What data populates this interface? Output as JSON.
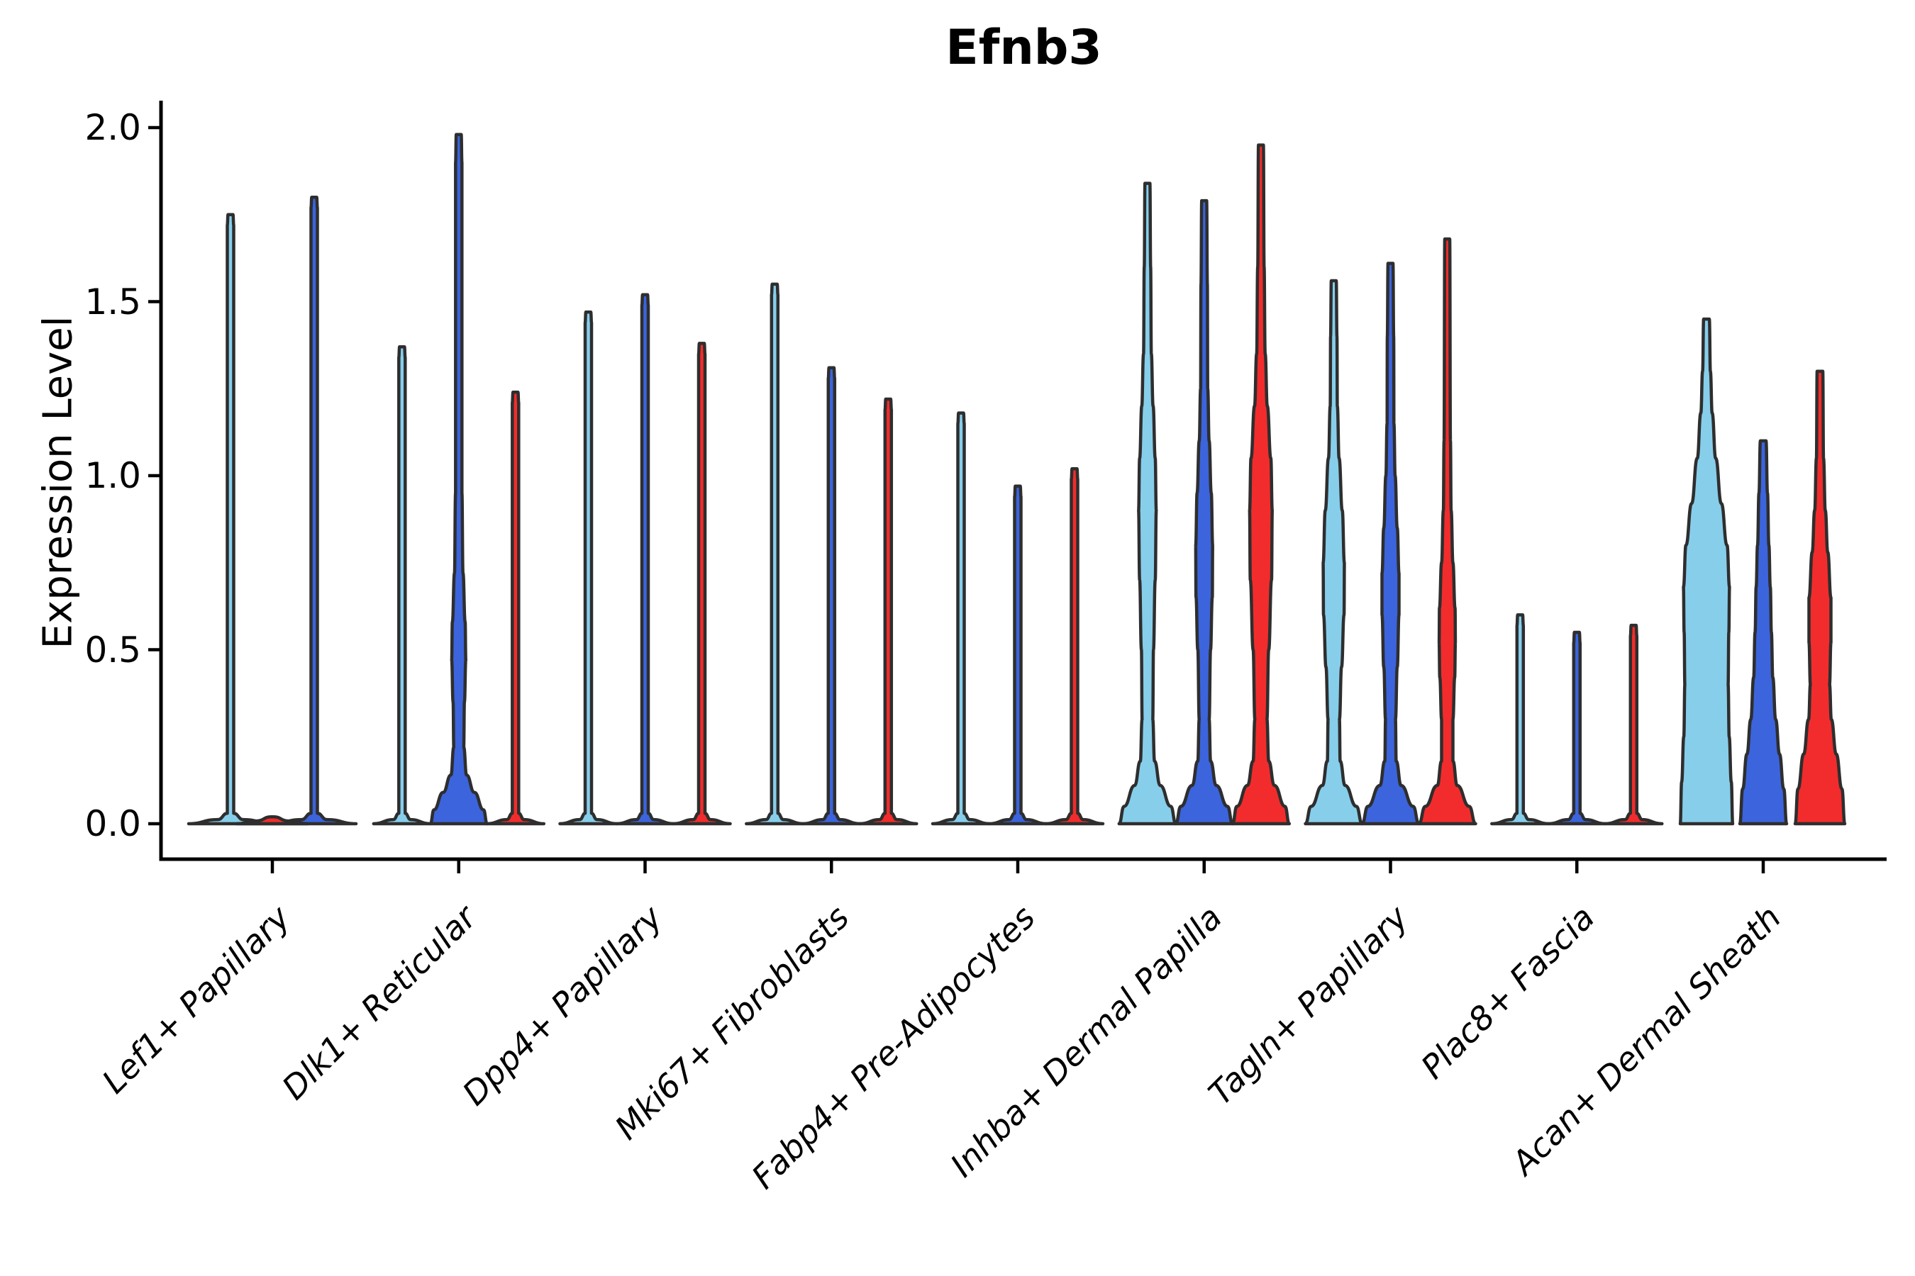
{
  "chart_data": {
    "type": "violin",
    "title": "Efnb3",
    "ylabel": "Expression Level",
    "xlabel": "",
    "ylim": [
      -0.04,
      2.08
    ],
    "yticks": [
      0.0,
      0.5,
      1.0,
      1.5,
      2.0
    ],
    "ytick_labels": [
      "0.0",
      "0.5",
      "1.0",
      "1.5",
      "2.0"
    ],
    "legend": "none",
    "grid": false,
    "palette": {
      "series1": "#87CEEB",
      "series2": "#3C64DC",
      "series3": "#F22C2C",
      "outline": "#2e2e2e"
    },
    "categories": [
      {
        "label": "Lef1+ Papillary",
        "violins": [
          {
            "color": "#87CEEB",
            "max": 1.75,
            "offset": -59,
            "base": 59,
            "shape": "spike"
          },
          {
            "color": "#3C64DC",
            "max": 1.8,
            "offset": 59,
            "base": 59,
            "shape": "spike"
          },
          {
            "color": "#F22C2C",
            "max": 0.0,
            "offset": 0,
            "base": 50,
            "shape": "flat"
          }
        ]
      },
      {
        "label": "Dlk1+ Reticular",
        "violins": [
          {
            "color": "#87CEEB",
            "max": 1.37,
            "offset": -80,
            "base": 40,
            "shape": "spike"
          },
          {
            "color": "#3C64DC",
            "max": 1.98,
            "offset": 0,
            "base": 40,
            "shape": "profile",
            "profile": [
              [
                0,
                40
              ],
              [
                0.04,
                35
              ],
              [
                0.09,
                22
              ],
              [
                0.14,
                11
              ],
              [
                0.22,
                7
              ],
              [
                0.35,
                8
              ],
              [
                0.47,
                10
              ],
              [
                0.58,
                9
              ],
              [
                0.72,
                6
              ],
              [
                0.95,
                4.5
              ],
              [
                1.9,
                4.5
              ],
              [
                1.98,
                3.5
              ]
            ]
          },
          {
            "color": "#F22C2C",
            "max": 1.24,
            "offset": 80,
            "base": 40,
            "shape": "spike"
          }
        ]
      },
      {
        "label": "Dpp4+ Papillary",
        "violins": [
          {
            "color": "#87CEEB",
            "max": 1.47,
            "offset": -80,
            "base": 40,
            "shape": "spike"
          },
          {
            "color": "#3C64DC",
            "max": 1.52,
            "offset": 0,
            "base": 40,
            "shape": "spike"
          },
          {
            "color": "#F22C2C",
            "max": 1.38,
            "offset": 80,
            "base": 40,
            "shape": "spike"
          }
        ]
      },
      {
        "label": "Mki67+ Fibroblasts",
        "violins": [
          {
            "color": "#87CEEB",
            "max": 1.55,
            "offset": -80,
            "base": 40,
            "shape": "spike"
          },
          {
            "color": "#3C64DC",
            "max": 1.31,
            "offset": 0,
            "base": 40,
            "shape": "spike"
          },
          {
            "color": "#F22C2C",
            "max": 1.22,
            "offset": 80,
            "base": 40,
            "shape": "spike"
          }
        ]
      },
      {
        "label": "Fabp4+ Pre-Adipocytes",
        "violins": [
          {
            "color": "#87CEEB",
            "max": 1.18,
            "offset": -80,
            "base": 40,
            "shape": "spike"
          },
          {
            "color": "#3C64DC",
            "max": 0.97,
            "offset": 0,
            "base": 40,
            "shape": "spike"
          },
          {
            "color": "#F22C2C",
            "max": 1.02,
            "offset": 80,
            "base": 40,
            "shape": "spike"
          }
        ]
      },
      {
        "label": "Inhba+ Dermal Papilla",
        "violins": [
          {
            "color": "#87CEEB",
            "max": 1.84,
            "offset": -80,
            "base": 40,
            "shape": "profile",
            "profile": [
              [
                0,
                40
              ],
              [
                0.05,
                33
              ],
              [
                0.11,
                18
              ],
              [
                0.18,
                10
              ],
              [
                0.3,
                7.5
              ],
              [
                0.5,
                8.5
              ],
              [
                0.7,
                11
              ],
              [
                0.9,
                12.5
              ],
              [
                1.05,
                11
              ],
              [
                1.2,
                8
              ],
              [
                1.35,
                5.5
              ],
              [
                1.6,
                4.5
              ],
              [
                1.84,
                3.5
              ]
            ]
          },
          {
            "color": "#3C64DC",
            "max": 1.79,
            "offset": 0,
            "base": 40,
            "shape": "profile",
            "profile": [
              [
                0,
                40
              ],
              [
                0.05,
                33
              ],
              [
                0.11,
                17
              ],
              [
                0.18,
                9
              ],
              [
                0.3,
                7
              ],
              [
                0.5,
                9
              ],
              [
                0.65,
                11.5
              ],
              [
                0.8,
                12
              ],
              [
                0.95,
                10
              ],
              [
                1.1,
                7
              ],
              [
                1.25,
                5
              ],
              [
                1.55,
                4.5
              ],
              [
                1.79,
                3.5
              ]
            ]
          },
          {
            "color": "#F22C2C",
            "max": 1.95,
            "offset": 80,
            "base": 40,
            "shape": "profile",
            "profile": [
              [
                0,
                40
              ],
              [
                0.05,
                34
              ],
              [
                0.11,
                19
              ],
              [
                0.18,
                11
              ],
              [
                0.3,
                8.5
              ],
              [
                0.5,
                11
              ],
              [
                0.7,
                15
              ],
              [
                0.9,
                16
              ],
              [
                1.05,
                14
              ],
              [
                1.2,
                9
              ],
              [
                1.35,
                6
              ],
              [
                1.6,
                4.5
              ],
              [
                1.95,
                3.5
              ]
            ]
          }
        ]
      },
      {
        "label": "Tagln+ Papillary",
        "violins": [
          {
            "color": "#87CEEB",
            "max": 1.56,
            "offset": -80,
            "base": 40,
            "shape": "profile",
            "profile": [
              [
                0,
                40
              ],
              [
                0.05,
                32
              ],
              [
                0.11,
                16
              ],
              [
                0.18,
                9
              ],
              [
                0.3,
                8
              ],
              [
                0.45,
                11
              ],
              [
                0.6,
                14.5
              ],
              [
                0.75,
                15
              ],
              [
                0.9,
                12
              ],
              [
                1.05,
                7.5
              ],
              [
                1.2,
                5
              ],
              [
                1.4,
                4.5
              ],
              [
                1.56,
                3.5
              ]
            ]
          },
          {
            "color": "#3C64DC",
            "max": 1.61,
            "offset": 0,
            "base": 40,
            "shape": "profile",
            "profile": [
              [
                0,
                40
              ],
              [
                0.05,
                32
              ],
              [
                0.11,
                15
              ],
              [
                0.18,
                8
              ],
              [
                0.3,
                7
              ],
              [
                0.45,
                9.5
              ],
              [
                0.6,
                12
              ],
              [
                0.72,
                12
              ],
              [
                0.85,
                9.5
              ],
              [
                1.0,
                6.5
              ],
              [
                1.15,
                4.8
              ],
              [
                1.4,
                4.5
              ],
              [
                1.61,
                3.5
              ]
            ]
          },
          {
            "color": "#F22C2C",
            "max": 1.68,
            "offset": 80,
            "base": 40,
            "shape": "profile",
            "profile": [
              [
                0,
                40
              ],
              [
                0.05,
                31
              ],
              [
                0.11,
                14
              ],
              [
                0.18,
                8
              ],
              [
                0.3,
                8
              ],
              [
                0.42,
                10.5
              ],
              [
                0.52,
                11.5
              ],
              [
                0.62,
                11
              ],
              [
                0.75,
                8
              ],
              [
                0.9,
                5.5
              ],
              [
                1.1,
                4.5
              ],
              [
                1.68,
                3.5
              ]
            ]
          }
        ]
      },
      {
        "label": "Plac8+ Fascia",
        "violins": [
          {
            "color": "#87CEEB",
            "max": 0.6,
            "offset": -80,
            "base": 40,
            "shape": "spike"
          },
          {
            "color": "#3C64DC",
            "max": 0.55,
            "offset": 0,
            "base": 40,
            "shape": "spike"
          },
          {
            "color": "#F22C2C",
            "max": 0.57,
            "offset": 80,
            "base": 40,
            "shape": "spike"
          }
        ]
      },
      {
        "label": "Acan+ Dermal Sheath",
        "violins": [
          {
            "color": "#87CEEB",
            "max": 1.45,
            "offset": -80,
            "base": 37,
            "shape": "profile",
            "profile": [
              [
                0,
                37
              ],
              [
                0.12,
                35
              ],
              [
                0.25,
                32
              ],
              [
                0.4,
                30.5
              ],
              [
                0.55,
                31.5
              ],
              [
                0.68,
                32.5
              ],
              [
                0.8,
                29
              ],
              [
                0.92,
                21
              ],
              [
                1.05,
                13
              ],
              [
                1.18,
                8
              ],
              [
                1.3,
                5.5
              ],
              [
                1.45,
                4
              ]
            ]
          },
          {
            "color": "#3C64DC",
            "max": 1.1,
            "offset": 0,
            "base": 33,
            "shape": "profile",
            "profile": [
              [
                0,
                33
              ],
              [
                0.1,
                29
              ],
              [
                0.2,
                23
              ],
              [
                0.3,
                17.5
              ],
              [
                0.42,
                13.5
              ],
              [
                0.55,
                11.5
              ],
              [
                0.68,
                10
              ],
              [
                0.8,
                8
              ],
              [
                0.95,
                6
              ],
              [
                1.1,
                4
              ]
            ]
          },
          {
            "color": "#F22C2C",
            "max": 1.3,
            "offset": 80,
            "base": 35,
            "shape": "profile",
            "profile": [
              [
                0,
                35
              ],
              [
                0.1,
                31
              ],
              [
                0.2,
                23
              ],
              [
                0.3,
                16
              ],
              [
                0.4,
                13.5
              ],
              [
                0.52,
                15.5
              ],
              [
                0.65,
                15.5
              ],
              [
                0.78,
                11
              ],
              [
                0.9,
                7.5
              ],
              [
                1.05,
                5
              ],
              [
                1.3,
                4
              ]
            ]
          }
        ]
      }
    ]
  }
}
